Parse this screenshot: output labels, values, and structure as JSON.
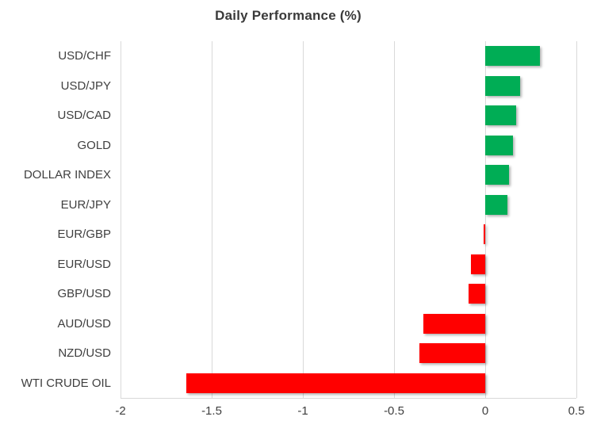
{
  "chart_data": {
    "type": "bar",
    "orientation": "horizontal",
    "title": "Daily Performance (%)",
    "categories": [
      "USD/CHF",
      "USD/JPY",
      "USD/CAD",
      "GOLD",
      "DOLLAR INDEX",
      "EUR/JPY",
      "EUR/GBP",
      "EUR/USD",
      "GBP/USD",
      "AUD/USD",
      "NZD/USD",
      "WTI CRUDE OIL"
    ],
    "values": [
      0.3,
      0.19,
      0.17,
      0.15,
      0.13,
      0.12,
      -0.01,
      -0.08,
      -0.09,
      -0.34,
      -0.36,
      -1.64
    ],
    "xlabel": "",
    "ylabel": "",
    "xlim": [
      -2,
      0.5
    ],
    "x_ticks": [
      -2,
      -1.5,
      -1,
      -0.5,
      0,
      0.5
    ],
    "x_tick_labels": [
      "-2",
      "-1.5",
      "-1",
      "-0.5",
      "0",
      "0.5"
    ],
    "grid": true,
    "legend": false,
    "colors": {
      "positive": "#00AD55",
      "negative": "#FF0000",
      "gridline": "#D9D9D9",
      "text": "#3F3F3F",
      "background": "#FFFFFF"
    }
  }
}
